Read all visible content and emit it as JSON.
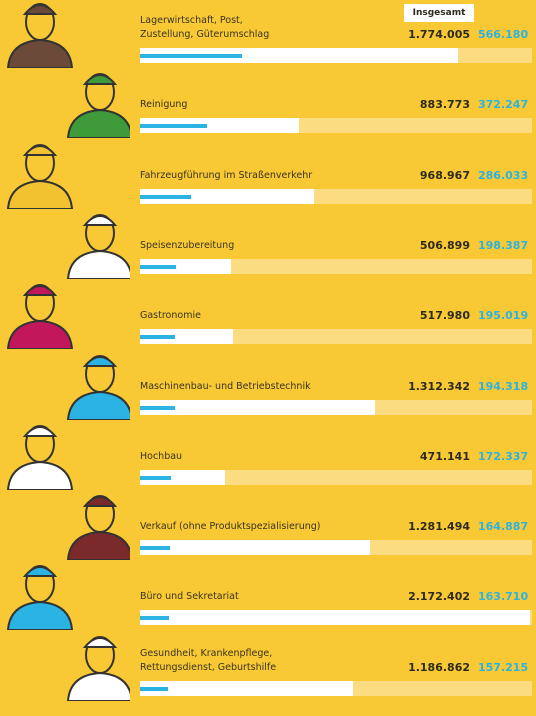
{
  "chart_data": {
    "type": "bar",
    "orientation": "horizontal",
    "categories": [
      "Lagerwirtschaft, Post,\nZustellung, Güterumschlag",
      "Reinigung",
      "Fahrzeugführung im Straßenverkehr",
      "Speisenzubereitung",
      "Gastronomie",
      "Maschinenbau- und Betriebstechnik",
      "Hochbau",
      "Verkauf (ohne Produktspezialisierung)",
      "Büro und Sekretariat",
      "Gesundheit, Krankenpflege,\nRettungsdienst, Geburtshilfe"
    ],
    "series": [
      {
        "name": "Insgesamt",
        "color": "#ffffff",
        "values": [
          1774005,
          883773,
          968967,
          506899,
          517980,
          1312342,
          471141,
          1281494,
          2172402,
          1186862
        ],
        "value_labels": [
          "1.774.005",
          "883.773",
          "968.967",
          "506.899",
          "517.980",
          "1.312.342",
          "471.141",
          "1.281.494",
          "2.172.402",
          "1.186.862"
        ]
      },
      {
        "color": "#2bb3e3",
        "values": [
          566180,
          372247,
          286033,
          198387,
          195019,
          194318,
          172337,
          164887,
          163710,
          157215
        ],
        "value_labels": [
          "566.180",
          "372.247",
          "286.033",
          "198.387",
          "195.019",
          "194.318",
          "172.337",
          "164.887",
          "163.710",
          "157.215"
        ]
      }
    ],
    "xlim": [
      0,
      2185000
    ]
  }
}
